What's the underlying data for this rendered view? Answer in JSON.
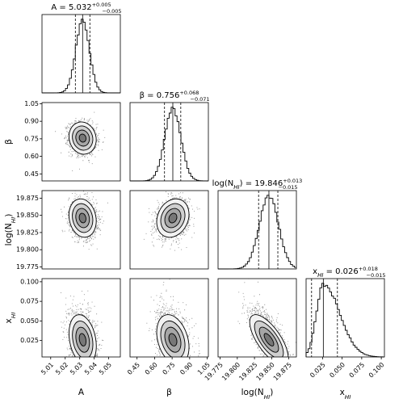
{
  "chart_data": {
    "type": "corner",
    "parameters": [
      {
        "key": "A",
        "label": "A",
        "title": {
          "prefix": "A = ",
          "value": "5.032",
          "plus": "+0.005",
          "minus": "−0.005"
        },
        "ticks": [
          5.01,
          5.02,
          5.03,
          5.04,
          5.05
        ],
        "tick_labels": [
          "5.01",
          "5.02",
          "5.03",
          "5.04",
          "5.05"
        ],
        "range": [
          5.004,
          5.058
        ],
        "median": 5.032,
        "q16": 5.027,
        "q84": 5.037,
        "sigma": 0.0047
      },
      {
        "key": "beta",
        "label": "β",
        "title": {
          "prefix": "β = ",
          "value": "0.756",
          "plus": "+0.068",
          "minus": "−0.071"
        },
        "ticks": [
          0.45,
          0.6,
          0.75,
          0.9,
          1.05
        ],
        "tick_labels": [
          "0.45",
          "0.60",
          "0.75",
          "0.90",
          "1.05"
        ],
        "range": [
          0.39,
          1.06
        ],
        "median": 0.756,
        "q16": 0.685,
        "q84": 0.824,
        "sigma": 0.069
      },
      {
        "key": "logNHI",
        "label": "log(N_HI)",
        "title": {
          "prefix": "log(N_HI) = ",
          "value": "19.846",
          "plus": "+0.013",
          "minus": "−0.015"
        },
        "ticks": [
          19.775,
          19.8,
          19.825,
          19.85,
          19.875
        ],
        "tick_labels": [
          "19.775",
          "19.800",
          "19.825",
          "19.850",
          "19.875"
        ],
        "range": [
          19.772,
          19.886
        ],
        "median": 19.846,
        "q16": 19.831,
        "q84": 19.859,
        "sigma": 0.014
      },
      {
        "key": "xHI",
        "label": "x_HI",
        "title": {
          "prefix": "x_HI = ",
          "value": "0.026",
          "plus": "+0.018",
          "minus": "−0.015"
        },
        "ticks": [
          0.025,
          0.05,
          0.075,
          0.1
        ],
        "tick_labels": [
          "0.025",
          "0.050",
          "0.075",
          "0.100"
        ],
        "range": [
          0.004,
          0.104
        ],
        "median": 0.026,
        "q16": 0.011,
        "q84": 0.044,
        "sigma": 0.016
      }
    ],
    "correlations": {
      "1-0": -0.1,
      "2-0": -0.15,
      "2-1": 0.2,
      "3-0": -0.25,
      "3-1": -0.3,
      "3-2": -0.7
    },
    "contour_levels": [
      0.5,
      1.0,
      1.5,
      2.0
    ],
    "colors": {
      "points": "#222222",
      "fills": [
        "#f2f2f2",
        "#cfcfcf",
        "#a6a6a6",
        "#777777"
      ],
      "lines": "#000000"
    }
  }
}
